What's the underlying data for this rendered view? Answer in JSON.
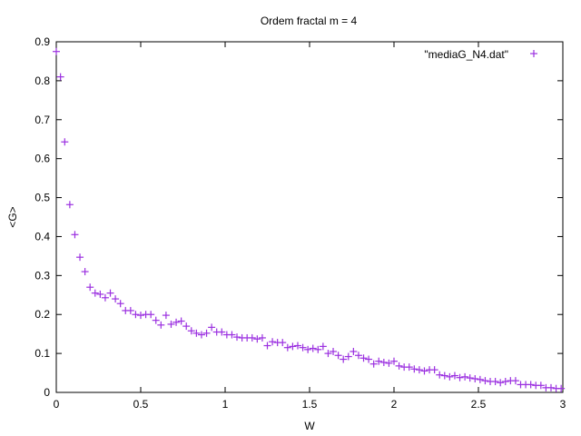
{
  "chart_data": {
    "type": "scatter",
    "title": "Ordem fractal m = 4",
    "xlabel": "W",
    "ylabel": "<G>",
    "xlim": [
      0,
      3
    ],
    "ylim": [
      0,
      0.9
    ],
    "xticks": [
      "0",
      "0.5",
      "1",
      "1.5",
      "2",
      "2.5",
      "3"
    ],
    "yticks": [
      "0",
      "0.1",
      "0.2",
      "0.3",
      "0.4",
      "0.5",
      "0.6",
      "0.7",
      "0.8",
      "0.9"
    ],
    "grid": false,
    "legend_position": "top-right",
    "marker": "plus",
    "series": [
      {
        "name": "\"mediaG_N4.dat\"",
        "color": "#9b30e0",
        "points": [
          [
            0.0,
            0.875
          ],
          [
            0.025,
            0.81
          ],
          [
            0.05,
            0.643
          ],
          [
            0.08,
            0.482
          ],
          [
            0.11,
            0.405
          ],
          [
            0.14,
            0.347
          ],
          [
            0.17,
            0.31
          ],
          [
            0.2,
            0.27
          ],
          [
            0.23,
            0.255
          ],
          [
            0.26,
            0.252
          ],
          [
            0.29,
            0.243
          ],
          [
            0.32,
            0.255
          ],
          [
            0.35,
            0.24
          ],
          [
            0.38,
            0.228
          ],
          [
            0.41,
            0.21
          ],
          [
            0.44,
            0.21
          ],
          [
            0.47,
            0.2
          ],
          [
            0.5,
            0.198
          ],
          [
            0.53,
            0.2
          ],
          [
            0.56,
            0.2
          ],
          [
            0.59,
            0.185
          ],
          [
            0.62,
            0.173
          ],
          [
            0.65,
            0.198
          ],
          [
            0.68,
            0.175
          ],
          [
            0.71,
            0.18
          ],
          [
            0.74,
            0.183
          ],
          [
            0.77,
            0.17
          ],
          [
            0.8,
            0.158
          ],
          [
            0.83,
            0.152
          ],
          [
            0.86,
            0.148
          ],
          [
            0.89,
            0.152
          ],
          [
            0.92,
            0.167
          ],
          [
            0.95,
            0.155
          ],
          [
            0.98,
            0.155
          ],
          [
            1.01,
            0.148
          ],
          [
            1.04,
            0.148
          ],
          [
            1.07,
            0.142
          ],
          [
            1.1,
            0.14
          ],
          [
            1.13,
            0.14
          ],
          [
            1.16,
            0.14
          ],
          [
            1.19,
            0.137
          ],
          [
            1.22,
            0.14
          ],
          [
            1.25,
            0.12
          ],
          [
            1.28,
            0.13
          ],
          [
            1.31,
            0.128
          ],
          [
            1.34,
            0.128
          ],
          [
            1.37,
            0.115
          ],
          [
            1.4,
            0.118
          ],
          [
            1.43,
            0.12
          ],
          [
            1.46,
            0.115
          ],
          [
            1.49,
            0.11
          ],
          [
            1.52,
            0.113
          ],
          [
            1.55,
            0.11
          ],
          [
            1.58,
            0.118
          ],
          [
            1.61,
            0.1
          ],
          [
            1.64,
            0.105
          ],
          [
            1.67,
            0.095
          ],
          [
            1.7,
            0.085
          ],
          [
            1.73,
            0.092
          ],
          [
            1.76,
            0.105
          ],
          [
            1.79,
            0.095
          ],
          [
            1.82,
            0.088
          ],
          [
            1.85,
            0.085
          ],
          [
            1.88,
            0.073
          ],
          [
            1.91,
            0.08
          ],
          [
            1.94,
            0.077
          ],
          [
            1.97,
            0.075
          ],
          [
            2.0,
            0.08
          ],
          [
            2.03,
            0.068
          ],
          [
            2.06,
            0.065
          ],
          [
            2.09,
            0.065
          ],
          [
            2.12,
            0.06
          ],
          [
            2.15,
            0.058
          ],
          [
            2.18,
            0.055
          ],
          [
            2.21,
            0.058
          ],
          [
            2.24,
            0.058
          ],
          [
            2.27,
            0.045
          ],
          [
            2.3,
            0.043
          ],
          [
            2.33,
            0.04
          ],
          [
            2.36,
            0.043
          ],
          [
            2.39,
            0.038
          ],
          [
            2.42,
            0.04
          ],
          [
            2.45,
            0.037
          ],
          [
            2.48,
            0.035
          ],
          [
            2.51,
            0.033
          ],
          [
            2.54,
            0.03
          ],
          [
            2.57,
            0.028
          ],
          [
            2.6,
            0.028
          ],
          [
            2.63,
            0.025
          ],
          [
            2.66,
            0.028
          ],
          [
            2.69,
            0.03
          ],
          [
            2.72,
            0.03
          ],
          [
            2.75,
            0.02
          ],
          [
            2.78,
            0.02
          ],
          [
            2.81,
            0.02
          ],
          [
            2.84,
            0.018
          ],
          [
            2.87,
            0.018
          ],
          [
            2.9,
            0.012
          ],
          [
            2.93,
            0.012
          ],
          [
            2.96,
            0.01
          ],
          [
            2.99,
            0.01
          ]
        ]
      }
    ]
  }
}
